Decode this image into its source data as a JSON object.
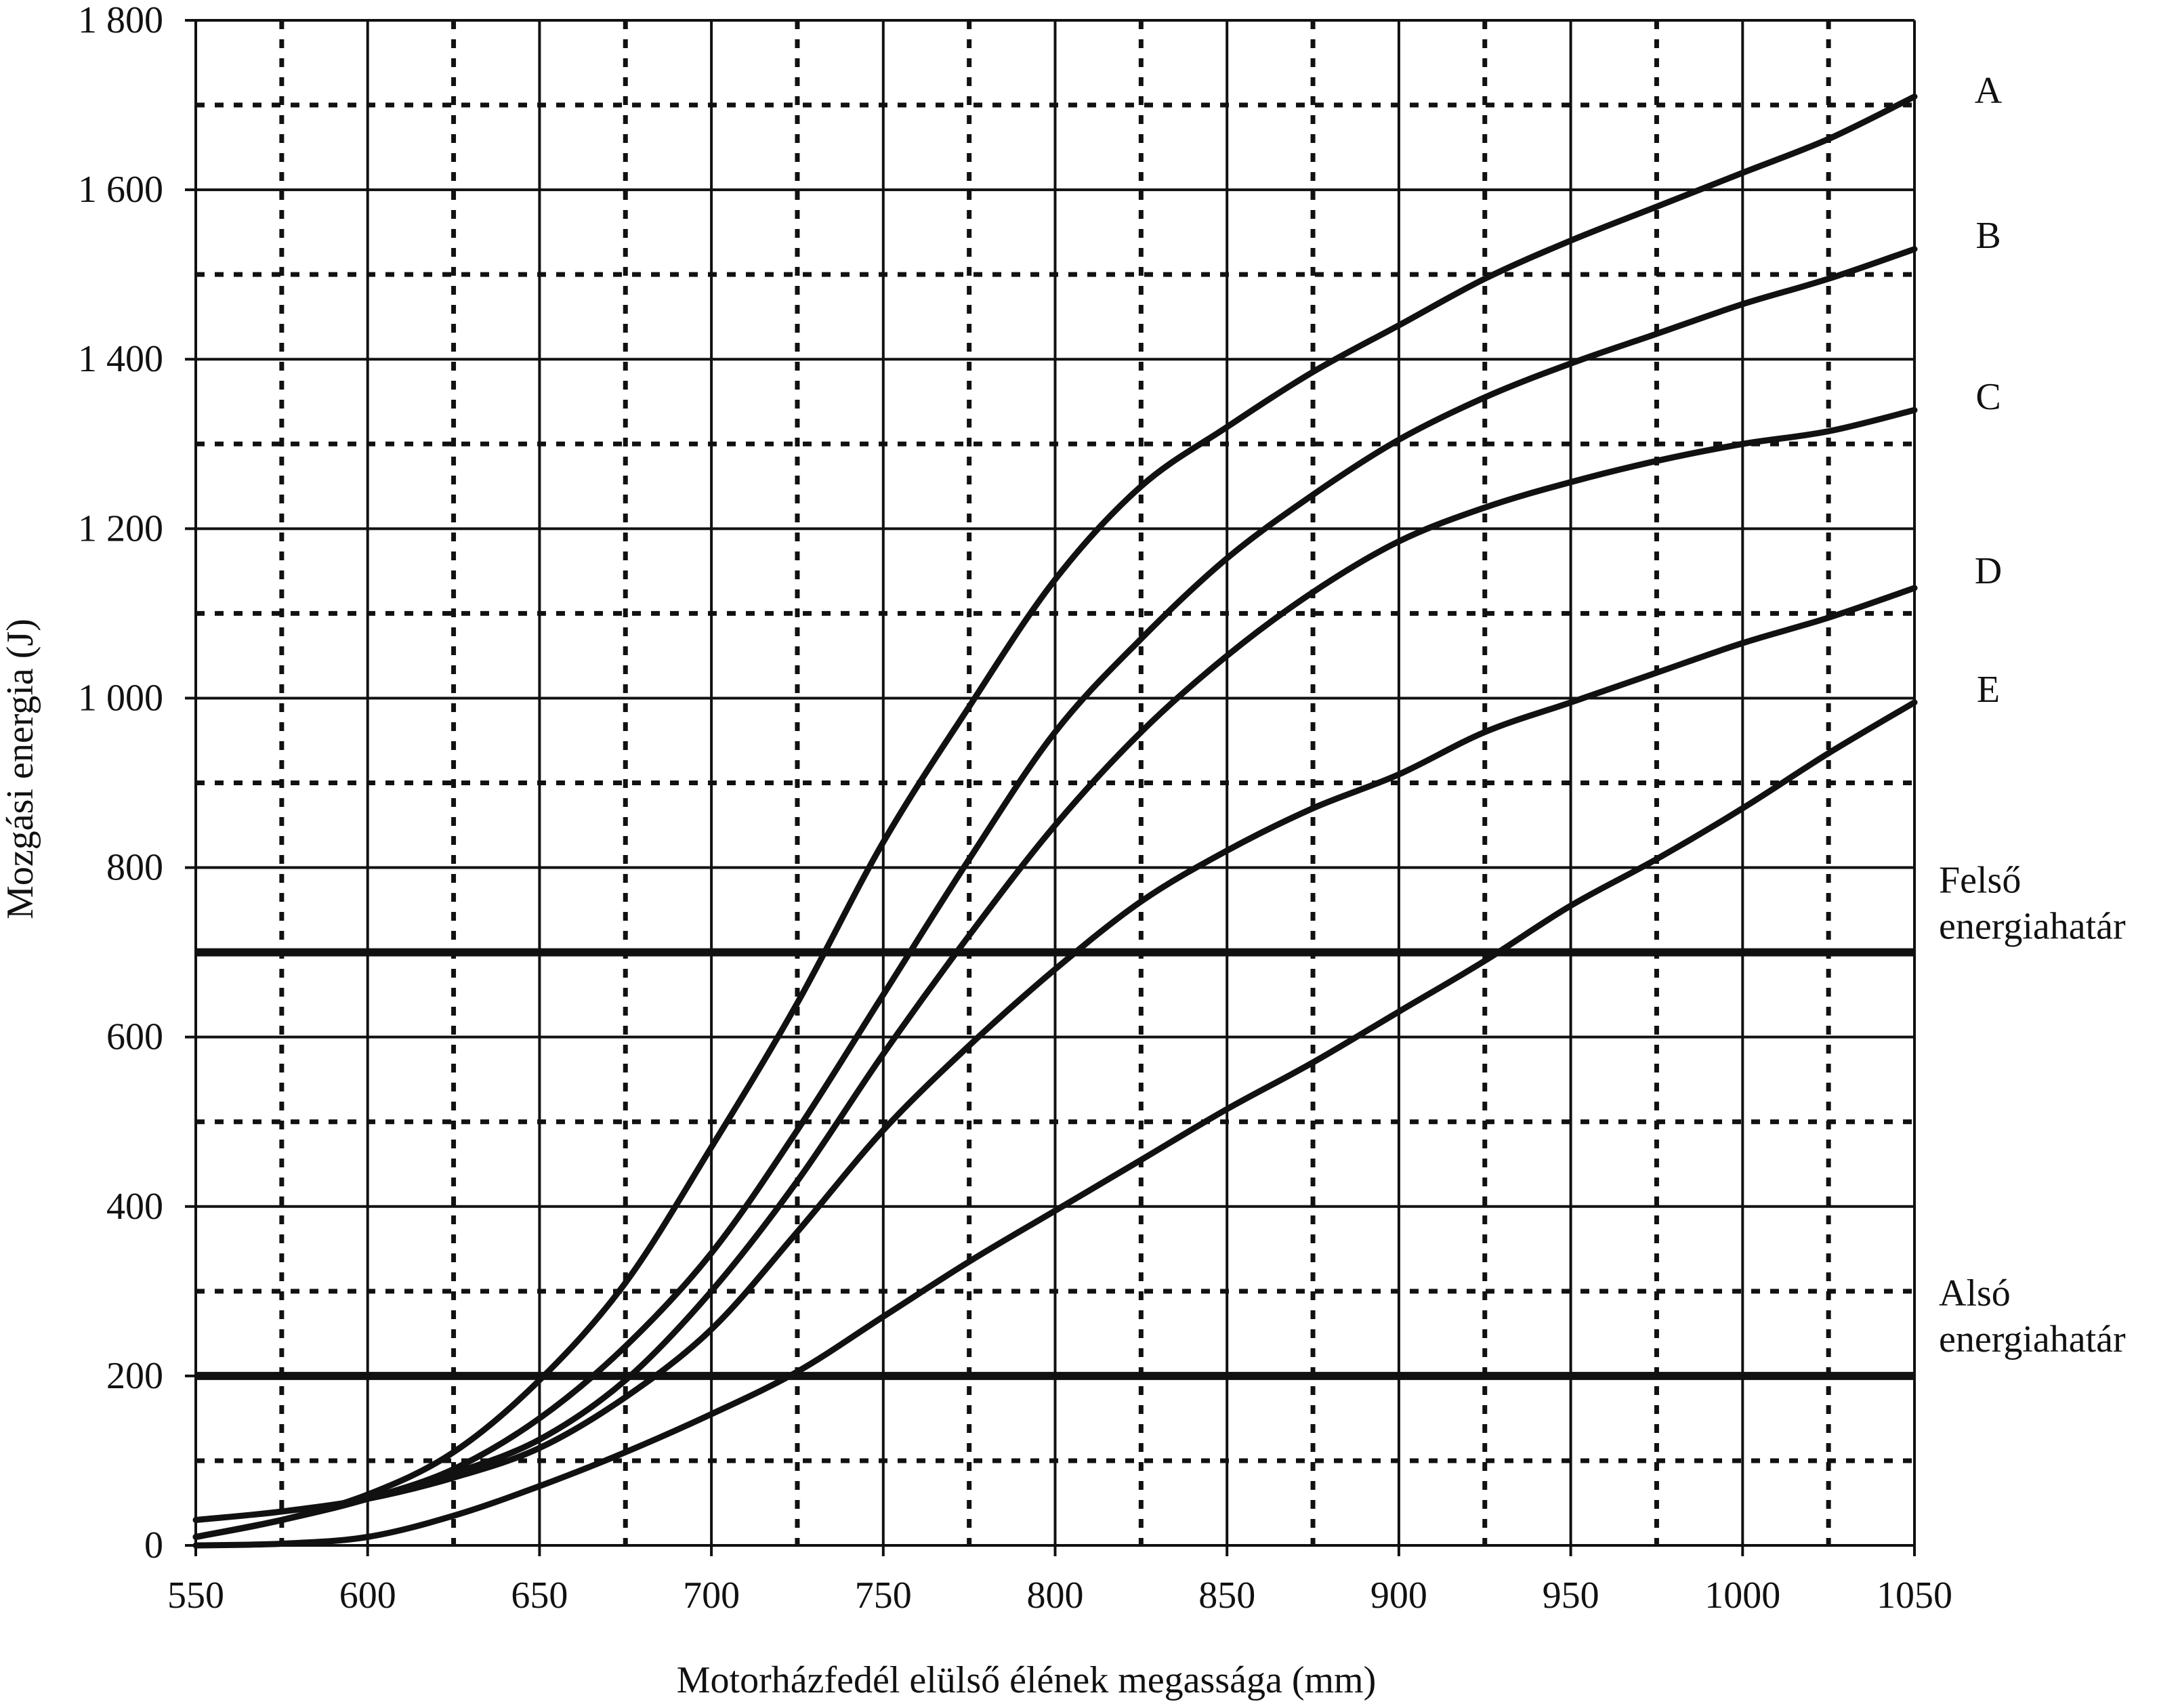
{
  "chart_data": {
    "type": "line",
    "title": "",
    "xlabel": "Motorházfedél elülső élének megassága (mm)",
    "ylabel": "Mozgási energia (J)",
    "xlim": [
      550,
      1050
    ],
    "ylim": [
      0,
      1800
    ],
    "x_ticks": [
      550,
      600,
      650,
      700,
      750,
      800,
      850,
      900,
      950,
      1000,
      1050
    ],
    "x_tick_labels": [
      "550",
      "600",
      "650",
      "700",
      "750",
      "800",
      "850",
      "900",
      "950",
      "1000",
      "1050"
    ],
    "y_ticks": [
      0,
      200,
      400,
      600,
      800,
      1000,
      1200,
      1400,
      1600,
      1800
    ],
    "y_tick_labels": [
      "0",
      "200",
      "400",
      "600",
      "800",
      "1 000",
      "1 200",
      "1 400",
      "1 600",
      "1 800"
    ],
    "x_minor_grid": [
      575,
      625,
      675,
      725,
      775,
      825,
      875,
      925,
      975,
      1025
    ],
    "y_minor_grid": [
      100,
      300,
      500,
      700,
      900,
      1100,
      1300,
      1500,
      1700
    ],
    "grid": true,
    "series": [
      {
        "name": "A",
        "x": [
          550,
          575,
          600,
          625,
          650,
          675,
          700,
          725,
          750,
          775,
          800,
          825,
          850,
          875,
          900,
          925,
          950,
          975,
          1000,
          1025,
          1050
        ],
        "values": [
          10,
          30,
          60,
          110,
          195,
          310,
          470,
          640,
          830,
          990,
          1140,
          1250,
          1320,
          1385,
          1440,
          1495,
          1540,
          1580,
          1620,
          1660,
          1710
        ]
      },
      {
        "name": "B",
        "x": [
          550,
          575,
          600,
          625,
          650,
          675,
          700,
          725,
          750,
          775,
          800,
          825,
          850,
          875,
          900,
          925,
          950,
          975,
          1000,
          1025,
          1050
        ],
        "values": [
          10,
          30,
          55,
          90,
          150,
          235,
          345,
          490,
          650,
          810,
          960,
          1070,
          1165,
          1240,
          1305,
          1355,
          1395,
          1430,
          1465,
          1495,
          1530
        ]
      },
      {
        "name": "C",
        "x": [
          550,
          575,
          600,
          625,
          650,
          675,
          700,
          725,
          750,
          775,
          800,
          825,
          850,
          875,
          900,
          925,
          950,
          975,
          1000,
          1025,
          1050
        ],
        "values": [
          10,
          30,
          55,
          85,
          125,
          195,
          300,
          430,
          580,
          720,
          850,
          960,
          1050,
          1125,
          1185,
          1225,
          1255,
          1280,
          1300,
          1315,
          1340
        ]
      },
      {
        "name": "D",
        "x": [
          550,
          575,
          600,
          625,
          650,
          675,
          700,
          725,
          750,
          775,
          800,
          825,
          850,
          875,
          900,
          925,
          950,
          975,
          1000,
          1025,
          1050
        ],
        "values": [
          30,
          40,
          55,
          80,
          115,
          175,
          255,
          370,
          490,
          590,
          680,
          760,
          820,
          870,
          910,
          960,
          995,
          1030,
          1065,
          1095,
          1130
        ]
      },
      {
        "name": "E",
        "x": [
          550,
          575,
          600,
          625,
          650,
          675,
          700,
          725,
          750,
          775,
          800,
          825,
          850,
          875,
          900,
          925,
          950,
          975,
          1000,
          1025,
          1050
        ],
        "values": [
          0,
          2,
          10,
          35,
          70,
          110,
          155,
          205,
          270,
          335,
          395,
          455,
          515,
          570,
          630,
          690,
          755,
          810,
          870,
          935,
          995
        ]
      }
    ],
    "reference_lines": [
      {
        "label_line1": "Felső",
        "label_line2": "energiahatár",
        "y": 700
      },
      {
        "label_line1": "Alsó",
        "label_line2": "energiahatár",
        "y": 200
      }
    ]
  }
}
